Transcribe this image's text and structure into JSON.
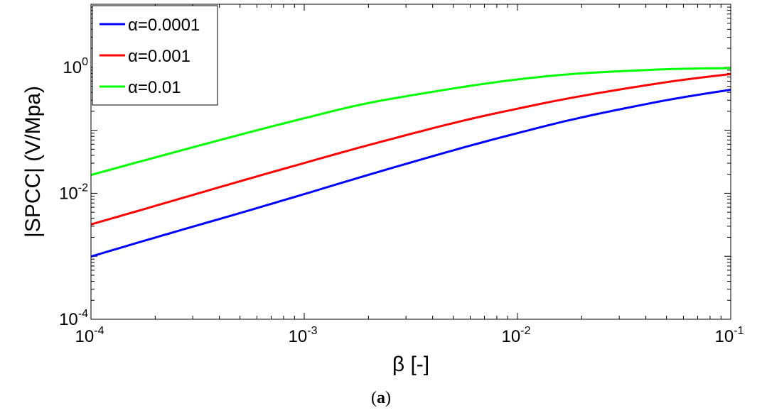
{
  "caption": {
    "open": "(",
    "letter": "a",
    "close": ")"
  },
  "chart_data": {
    "type": "line",
    "xlabel": "β [-]",
    "ylabel": "|SPCC| (V/Mpa)",
    "xscale": "log",
    "yscale": "log",
    "xlim": [
      0.0001,
      0.1
    ],
    "ylim": [
      0.0001,
      10
    ],
    "x_ticks": [
      {
        "base": "10",
        "exp": "-4"
      },
      {
        "base": "10",
        "exp": "-3"
      },
      {
        "base": "10",
        "exp": "-2"
      },
      {
        "base": "10",
        "exp": "-1"
      }
    ],
    "y_ticks": [
      {
        "base": "10",
        "exp": "-4"
      },
      {
        "base": "10",
        "exp": "-2"
      },
      {
        "base": "10",
        "exp": "0"
      }
    ],
    "legend_position": "top-left",
    "series": [
      {
        "name": "α=0.0001",
        "color": "#0000ff",
        "x": [
          0.0001,
          0.0002,
          0.0005,
          0.001,
          0.002,
          0.005,
          0.01,
          0.02,
          0.05,
          0.1
        ],
        "y": [
          0.00099,
          0.00198,
          0.00485,
          0.0097,
          0.0196,
          0.048,
          0.09,
          0.16,
          0.3,
          0.44
        ]
      },
      {
        "name": "α=0.001",
        "color": "#ff0000",
        "x": [
          0.0001,
          0.0002,
          0.0005,
          0.001,
          0.002,
          0.005,
          0.01,
          0.02,
          0.05,
          0.1
        ],
        "y": [
          0.0032,
          0.0063,
          0.0155,
          0.0302,
          0.058,
          0.13,
          0.22,
          0.35,
          0.58,
          0.78
        ]
      },
      {
        "name": "α=0.01",
        "color": "#00ff00",
        "x": [
          0.0001,
          0.0002,
          0.0005,
          0.001,
          0.002,
          0.005,
          0.01,
          0.02,
          0.05,
          0.1
        ],
        "y": [
          0.0195,
          0.037,
          0.085,
          0.155,
          0.27,
          0.46,
          0.64,
          0.8,
          0.93,
          0.97
        ]
      }
    ]
  }
}
